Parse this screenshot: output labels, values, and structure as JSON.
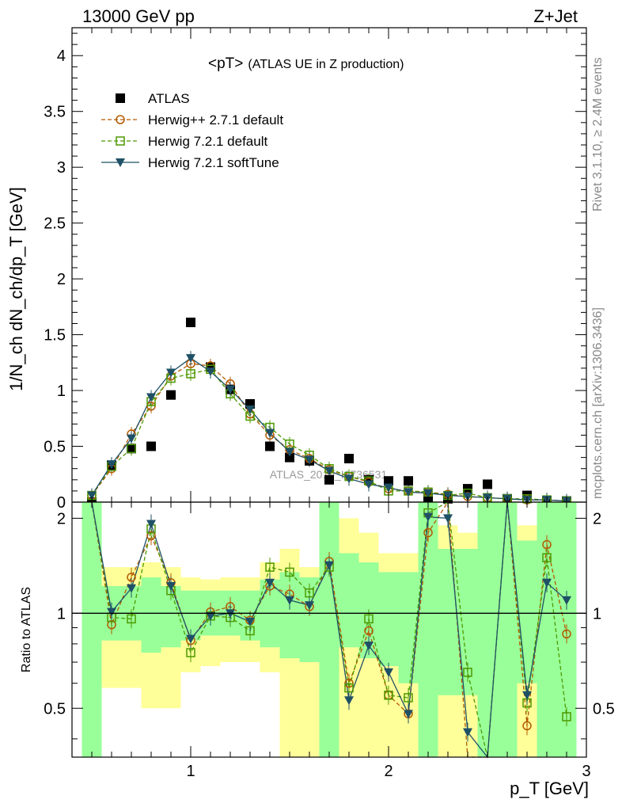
{
  "header": {
    "left": "13000 GeV pp",
    "right": "Z+Jet"
  },
  "side_labels": {
    "rivet": "Rivet 3.1.10, ≥ 2.4M events",
    "mcplots": "mcplots.cern.ch [arXiv:1306.3436]"
  },
  "watermark": "ATLAS_2019_I1736531",
  "colors": {
    "atlas": "#000000",
    "herwigpp": "#b35900",
    "herwig721": "#4d9900",
    "softtune": "#1f5066",
    "band_yellow": "#ffff99",
    "band_green": "#99ff99"
  },
  "chart_data": [
    {
      "type": "scatter",
      "title": "<pT> (ATLAS UE in Z production)",
      "title_main": "<pT>",
      "title_sub": "(ATLAS UE in Z production)",
      "ylabel": "1/N_ch dN_ch/dp_T [GeV]",
      "xlim": [
        0.4,
        3.0
      ],
      "ylim": [
        0,
        4.25
      ],
      "yticks": [
        "0",
        "0.5",
        "1",
        "1.5",
        "2",
        "2.5",
        "3",
        "3.5",
        "4"
      ],
      "legend_position": "top-left",
      "x": [
        0.5,
        0.6,
        0.7,
        0.8,
        0.9,
        1.0,
        1.1,
        1.2,
        1.3,
        1.4,
        1.5,
        1.6,
        1.7,
        1.8,
        1.9,
        2.0,
        2.1,
        2.2,
        2.3,
        2.4,
        2.5,
        2.6,
        2.7,
        2.8,
        2.9
      ],
      "series": [
        {
          "name": "ATLAS",
          "marker": "filled-square",
          "values": [
            0.0,
            0.33,
            0.48,
            0.5,
            0.96,
            1.61,
            1.21,
            1.01,
            0.88,
            0.5,
            0.4,
            0.37,
            0.2,
            0.39,
            0.2,
            0.19,
            0.19,
            0.04,
            0.03,
            0.12,
            0.16,
            0.03,
            0.06,
            0.01,
            0.01
          ]
        },
        {
          "name": "Herwig++ 2.7.1 default",
          "marker": "open-circle",
          "line": "dashed",
          "values": [
            0.06,
            0.3,
            0.61,
            0.86,
            1.13,
            1.24,
            1.22,
            1.06,
            0.79,
            0.6,
            0.47,
            0.39,
            0.29,
            0.23,
            0.18,
            0.12,
            0.1,
            0.09,
            0.07,
            0.05,
            0.04,
            0.03,
            0.02,
            0.02,
            0.01
          ]
        },
        {
          "name": "Herwig 7.2.1 default",
          "marker": "open-square",
          "line": "dashed",
          "values": [
            0.06,
            0.32,
            0.48,
            0.9,
            1.11,
            1.15,
            1.19,
            0.97,
            0.77,
            0.67,
            0.52,
            0.42,
            0.3,
            0.23,
            0.19,
            0.1,
            0.1,
            0.09,
            0.06,
            0.08,
            0.04,
            0.03,
            0.03,
            0.02,
            0.01
          ]
        },
        {
          "name": "Herwig 7.2.1 softTune",
          "marker": "filled-triangle-down",
          "line": "solid",
          "values": [
            0.06,
            0.34,
            0.57,
            0.94,
            1.16,
            1.29,
            1.17,
            1.01,
            0.83,
            0.62,
            0.45,
            0.38,
            0.28,
            0.21,
            0.16,
            0.13,
            0.09,
            0.08,
            0.06,
            0.05,
            0.04,
            0.03,
            0.02,
            0.02,
            0.01
          ]
        }
      ]
    },
    {
      "type": "scatter",
      "title": "",
      "xlabel": "p_T [GeV]",
      "ylabel": "Ratio to ATLAS",
      "xlim": [
        0.4,
        3.0
      ],
      "ylim": [
        0.35,
        2.25
      ],
      "xticks": [
        "1",
        "2",
        "3"
      ],
      "yticks": [
        "0.5",
        "1",
        "2"
      ],
      "reference_line": 1,
      "x": [
        0.5,
        0.6,
        0.7,
        0.8,
        0.9,
        1.0,
        1.1,
        1.2,
        1.3,
        1.4,
        1.5,
        1.6,
        1.7,
        1.8,
        1.9,
        2.0,
        2.1,
        2.2,
        2.3,
        2.4,
        2.5,
        2.6,
        2.7,
        2.8,
        2.9
      ],
      "uncertainty_bands": {
        "yellow_lo": [
          0.35,
          0.58,
          0.58,
          0.5,
          0.5,
          0.65,
          0.68,
          0.7,
          0.7,
          0.65,
          0.35,
          0.35,
          0.6,
          0.35,
          0.35,
          0.35,
          0.35,
          0.35,
          0.35,
          0.35,
          0.35,
          0.35,
          0.35,
          0.35,
          0.35
        ],
        "yellow_hi": [
          2.25,
          1.4,
          1.4,
          1.45,
          1.4,
          1.3,
          1.28,
          1.3,
          1.3,
          1.45,
          1.6,
          1.4,
          1.8,
          2.0,
          1.8,
          1.55,
          1.55,
          2.25,
          1.9,
          1.8,
          1.6,
          2.25,
          1.9,
          2.25,
          2.25
        ],
        "green_lo": [
          0.35,
          0.82,
          0.82,
          0.75,
          0.78,
          0.82,
          0.85,
          0.85,
          0.82,
          0.78,
          0.72,
          0.7,
          0.35,
          0.78,
          0.72,
          0.68,
          0.6,
          0.35,
          0.55,
          0.55,
          0.35,
          0.35,
          0.6,
          0.35,
          0.35
        ],
        "green_hi": [
          2.25,
          1.22,
          1.22,
          1.3,
          1.22,
          1.18,
          1.18,
          1.18,
          1.18,
          1.28,
          1.35,
          1.3,
          2.25,
          1.55,
          1.45,
          1.35,
          1.35,
          2.25,
          1.6,
          1.6,
          2.25,
          2.25,
          1.7,
          2.25,
          2.25
        ]
      },
      "series": [
        {
          "name": "Herwig++ 2.7.1 default",
          "values": [
            2.3,
            0.92,
            1.3,
            1.76,
            1.25,
            0.82,
            1.01,
            1.05,
            0.95,
            1.22,
            1.15,
            1.05,
            1.46,
            0.6,
            0.88,
            0.55,
            0.48,
            1.8,
            2.3,
            0.3,
            0.3,
            2.3,
            0.44,
            1.65,
            0.86
          ]
        },
        {
          "name": "Herwig 7.2.1 default",
          "values": [
            2.3,
            0.97,
            0.96,
            1.85,
            1.18,
            0.75,
            0.98,
            0.97,
            0.88,
            1.4,
            1.35,
            1.16,
            1.4,
            0.58,
            0.96,
            0.55,
            0.54,
            2.08,
            2.3,
            0.65,
            0.3,
            2.3,
            0.52,
            1.5,
            0.47
          ]
        },
        {
          "name": "Herwig 7.2.1 softTune",
          "values": [
            2.3,
            1.01,
            1.2,
            1.92,
            1.22,
            0.83,
            0.98,
            1.0,
            0.94,
            1.25,
            1.1,
            1.06,
            1.42,
            0.53,
            0.79,
            0.65,
            0.48,
            2.02,
            2.0,
            0.42,
            0.3,
            2.3,
            0.55,
            1.25,
            1.1
          ]
        }
      ]
    }
  ]
}
